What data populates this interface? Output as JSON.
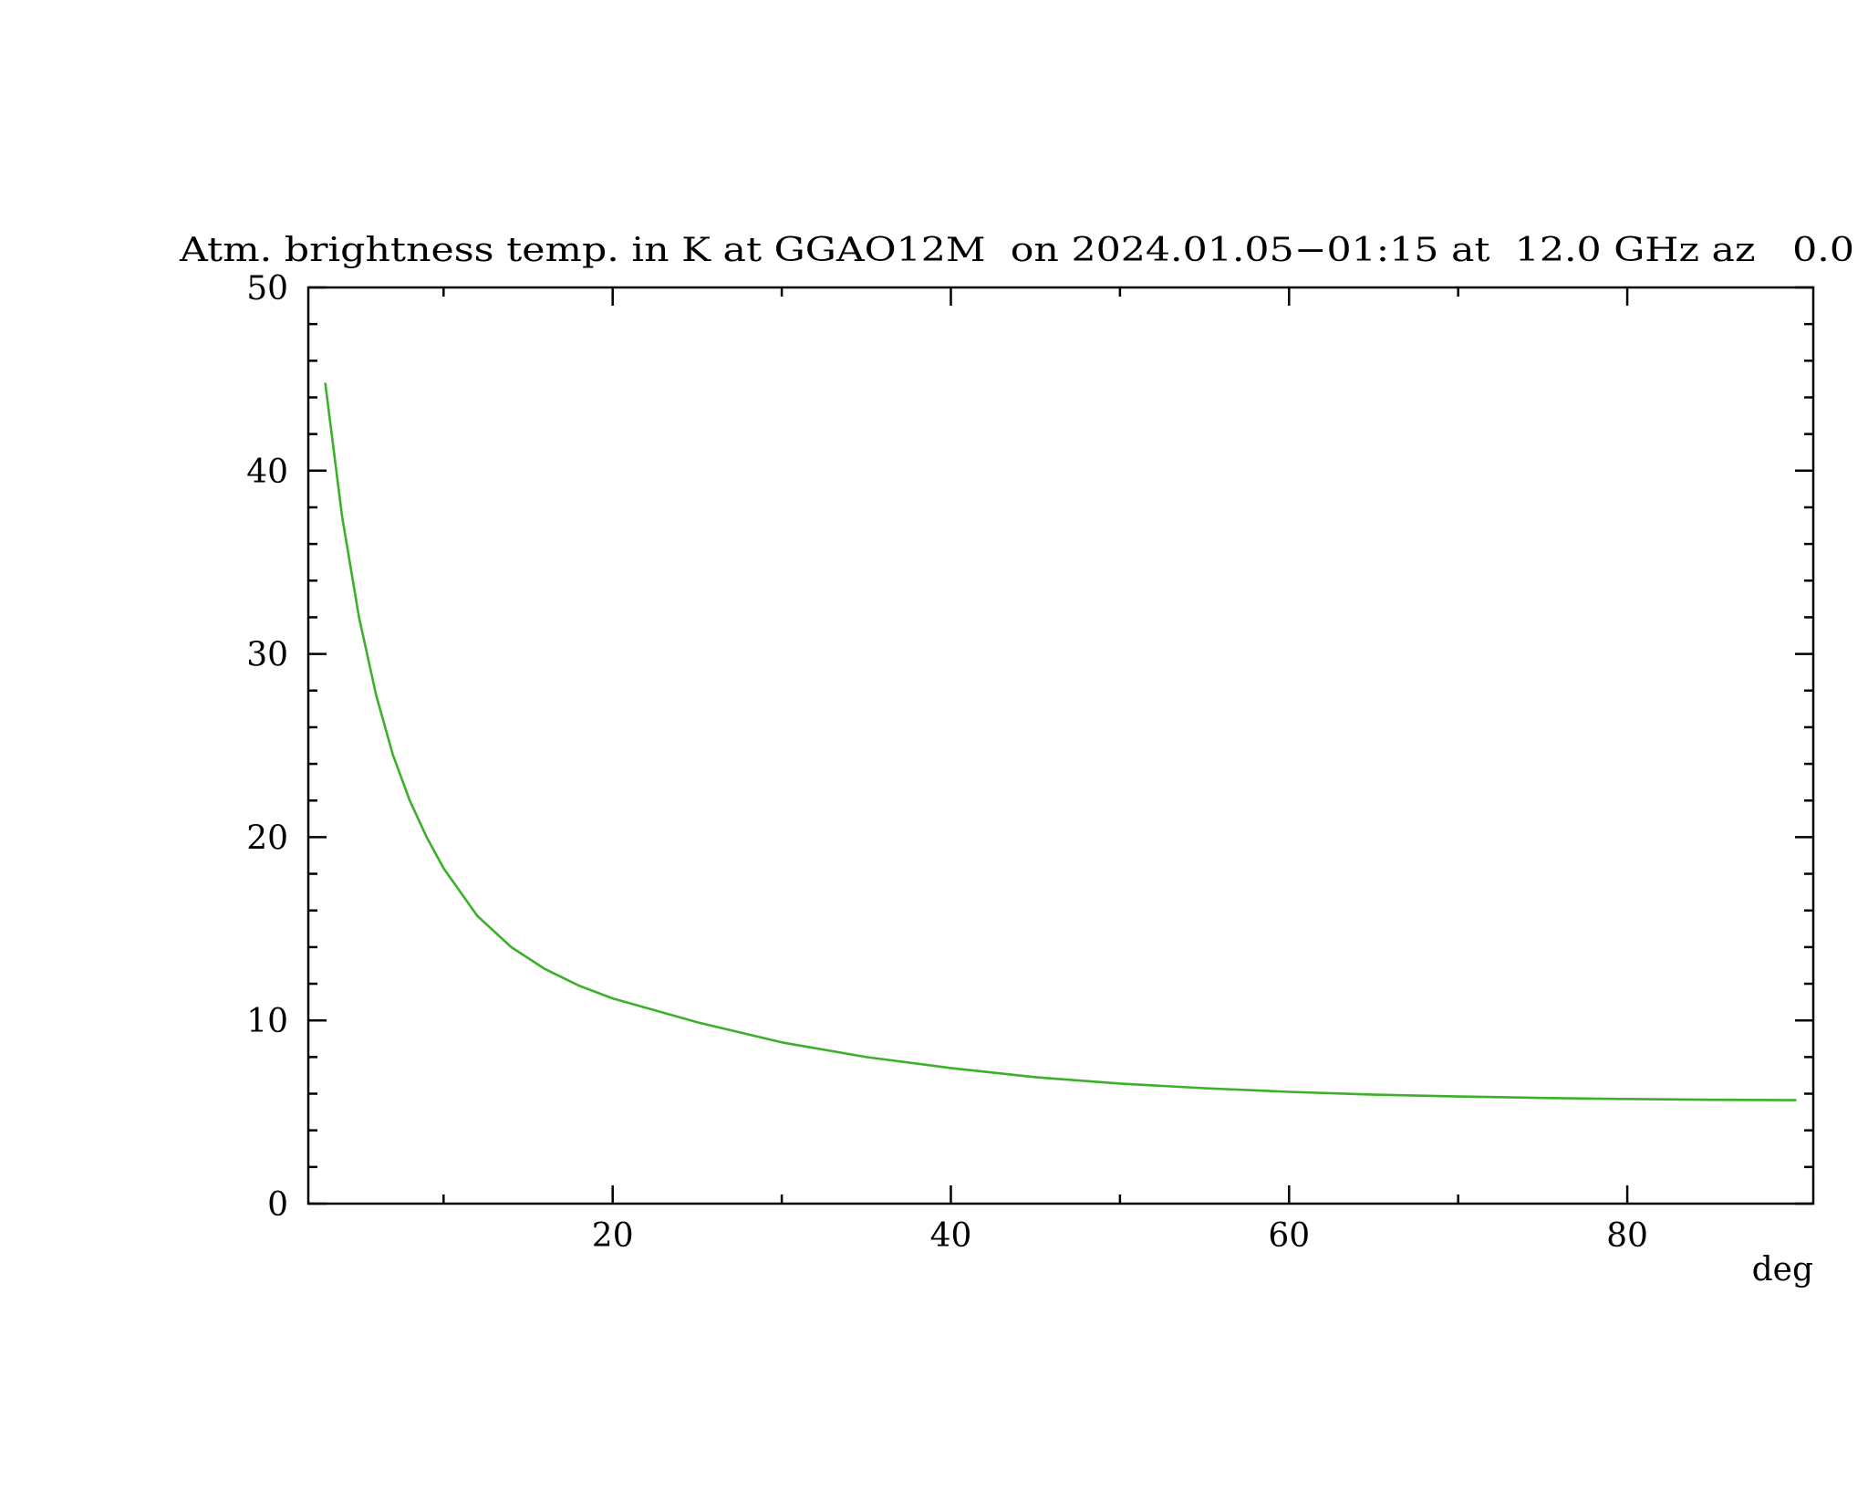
{
  "chart_data": {
    "type": "line",
    "title": "Atm. brightness temp. in K at GGAO12M  on 2024.01.05−01:15 at  12.0 GHz az   0.0",
    "xlabel": "deg",
    "x": [
      3,
      4,
      5,
      6,
      7,
      8,
      9,
      10,
      12,
      14,
      16,
      18,
      20,
      25,
      30,
      35,
      40,
      45,
      50,
      55,
      60,
      65,
      70,
      75,
      80,
      85,
      90
    ],
    "series": [
      {
        "color": "#3cb02a",
        "values": [
          44.8,
          37.5,
          32,
          27.8,
          24.5,
          22,
          20,
          18.3,
          15.7,
          14,
          12.8,
          11.9,
          11.2,
          9.9,
          8.8,
          8.0,
          7.4,
          6.9,
          6.55,
          6.3,
          6.1,
          5.95,
          5.85,
          5.77,
          5.71,
          5.67,
          5.65
        ]
      }
    ],
    "xlim": [
      2,
      91
    ],
    "xticks": [
      20,
      40,
      60,
      80
    ],
    "xminorticks": [
      10,
      30,
      50,
      70
    ],
    "ylim": [
      0,
      50
    ],
    "yticks": [
      0,
      10,
      20,
      30,
      40,
      50
    ],
    "yminorticks": [
      2,
      4,
      6,
      8,
      12,
      14,
      16,
      18,
      22,
      24,
      26,
      28,
      32,
      34,
      36,
      38,
      42,
      44,
      46,
      48
    ],
    "grid": false
  }
}
